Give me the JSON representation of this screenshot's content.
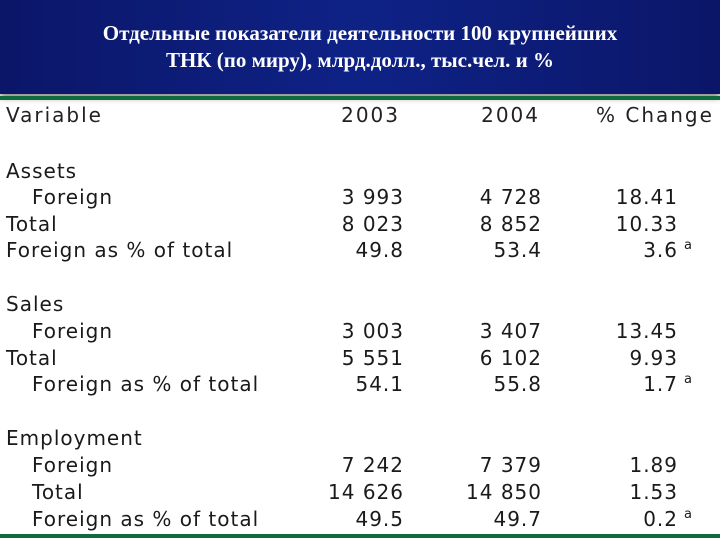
{
  "title": {
    "line1": "Отдельные показатели деятельности 100 крупнейших",
    "line2": "ТНК (по миру), млрд.долл., тыс.чел. и %"
  },
  "table": {
    "headers": {
      "variable": "Variable",
      "y2003": "2003",
      "y2004": "2004",
      "change": "% Change"
    },
    "assets": {
      "title": "Assets",
      "rows": [
        {
          "label": "Foreign",
          "y2003": "3 993",
          "y2004": "4 728",
          "change": "18.41",
          "note": ""
        },
        {
          "label": "Total",
          "y2003": "8 023",
          "y2004": "8 852",
          "change": "10.33",
          "note": ""
        },
        {
          "label": "Foreign as % of total",
          "y2003": "49.8",
          "y2004": "53.4",
          "change": "3.6",
          "note": "a"
        }
      ]
    },
    "sales": {
      "title": "Sales",
      "rows": [
        {
          "label": "Foreign",
          "y2003": "3 003",
          "y2004": "3 407",
          "change": "13.45",
          "note": ""
        },
        {
          "label": "Total",
          "y2003": "5 551",
          "y2004": "6 102",
          "change": "9.93",
          "note": ""
        },
        {
          "label": "Foreign as % of total",
          "y2003": "54.1",
          "y2004": "55.8",
          "change": "1.7",
          "note": "a"
        }
      ]
    },
    "employment": {
      "title": "Employment",
      "rows": [
        {
          "label": "Foreign",
          "y2003": "7 242",
          "y2004": "7 379",
          "change": "1.89",
          "note": ""
        },
        {
          "label": "Total",
          "y2003": "14 626",
          "y2004": "14 850",
          "change": "1.53",
          "note": ""
        },
        {
          "label": "Foreign as % of total",
          "y2003": "49.5",
          "y2004": "49.7",
          "change": "0.2",
          "note": "a"
        }
      ]
    }
  }
}
